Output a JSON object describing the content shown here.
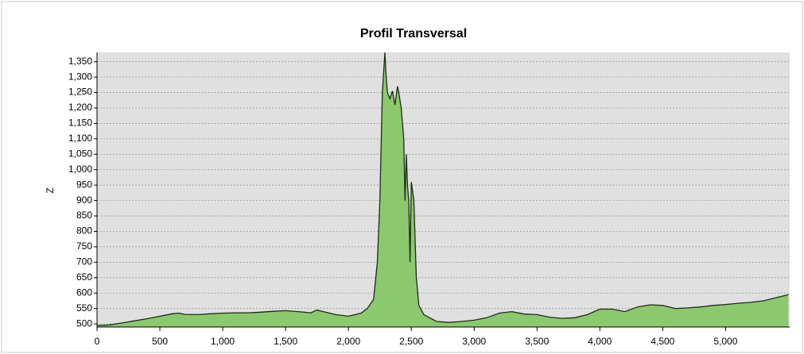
{
  "chart_data": {
    "type": "area",
    "title": "Profil Transversal",
    "y_label": "Z",
    "x": [
      0,
      100,
      200,
      300,
      400,
      500,
      600,
      650,
      700,
      800,
      900,
      1000,
      1100,
      1200,
      1300,
      1400,
      1500,
      1600,
      1700,
      1750,
      1800,
      1900,
      2000,
      2100,
      2150,
      2200,
      2230,
      2250,
      2270,
      2290,
      2300,
      2310,
      2330,
      2350,
      2370,
      2390,
      2400,
      2420,
      2440,
      2450,
      2460,
      2470,
      2480,
      2490,
      2500,
      2520,
      2540,
      2560,
      2600,
      2700,
      2800,
      2900,
      3000,
      3100,
      3200,
      3300,
      3400,
      3500,
      3600,
      3700,
      3800,
      3900,
      4000,
      4100,
      4200,
      4300,
      4400,
      4500,
      4600,
      4700,
      4800,
      4900,
      5000,
      5100,
      5200,
      5300,
      5400,
      5500
    ],
    "values": [
      495,
      497,
      503,
      510,
      517,
      525,
      533,
      535,
      531,
      530,
      533,
      535,
      536,
      536,
      538,
      541,
      543,
      540,
      536,
      545,
      540,
      530,
      525,
      535,
      550,
      580,
      700,
      900,
      1250,
      1380,
      1300,
      1250,
      1230,
      1255,
      1210,
      1270,
      1250,
      1200,
      1100,
      900,
      1050,
      950,
      900,
      700,
      960,
      900,
      650,
      560,
      530,
      508,
      505,
      508,
      512,
      520,
      535,
      540,
      532,
      530,
      522,
      518,
      520,
      530,
      548,
      548,
      540,
      555,
      562,
      560,
      550,
      552,
      555,
      560,
      563,
      567,
      570,
      575,
      585,
      595
    ],
    "color": "#8cc96e",
    "line_color": "#1e2a18",
    "grid": true,
    "xlim": [
      0,
      5510
    ],
    "ylim": [
      490,
      1380
    ],
    "xticks": [
      0,
      500,
      {
        "value": 1000,
        "label": "1,000"
      },
      {
        "value": 1500,
        "label": "1,500"
      },
      {
        "value": 2000,
        "label": "2,000"
      },
      {
        "value": 2500,
        "label": "2,500"
      },
      {
        "value": 3000,
        "label": "3,000"
      },
      {
        "value": 3500,
        "label": "3,500"
      },
      {
        "value": 4000,
        "label": "4,000"
      },
      {
        "value": 4500,
        "label": "4,500"
      },
      {
        "value": 5000,
        "label": "5,000"
      }
    ],
    "yticks": [
      500,
      550,
      600,
      650,
      700,
      750,
      800,
      850,
      900,
      950,
      {
        "value": 1000,
        "label": "1,000"
      },
      {
        "value": 1050,
        "label": "1,050"
      },
      {
        "value": 1100,
        "label": "1,100"
      },
      {
        "value": 1150,
        "label": "1,150"
      },
      {
        "value": 1200,
        "label": "1,200"
      },
      {
        "value": 1250,
        "label": "1,250"
      },
      {
        "value": 1300,
        "label": "1,300"
      },
      {
        "value": 1350,
        "label": "1,350"
      }
    ]
  }
}
